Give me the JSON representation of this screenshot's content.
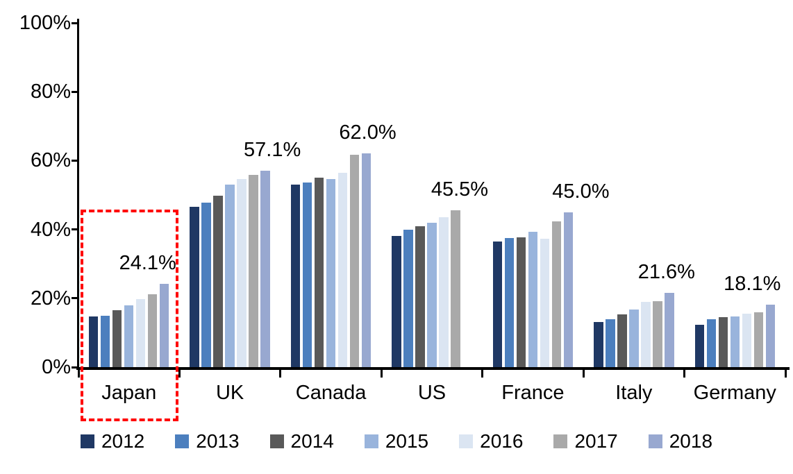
{
  "chart_data": {
    "type": "bar",
    "title": "",
    "categories": [
      "Japan",
      "UK",
      "Canada",
      "US",
      "France",
      "Italy",
      "Germany"
    ],
    "series": [
      {
        "name": "2012",
        "color": "#1F3864",
        "values": [
          14.8,
          46.5,
          53.0,
          38.2,
          36.5,
          13.2,
          12.4
        ]
      },
      {
        "name": "2013",
        "color": "#4C7FBE",
        "values": [
          15.0,
          47.8,
          53.6,
          40.0,
          37.6,
          14.0,
          13.9
        ]
      },
      {
        "name": "2014",
        "color": "#595959",
        "values": [
          16.6,
          49.8,
          55.0,
          41.0,
          37.7,
          15.3,
          14.5
        ]
      },
      {
        "name": "2015",
        "color": "#99B4DC",
        "values": [
          18.0,
          53.1,
          54.7,
          42.0,
          39.3,
          16.8,
          14.7
        ]
      },
      {
        "name": "2016",
        "color": "#DBE5F2",
        "values": [
          19.8,
          54.7,
          56.4,
          43.6,
          37.3,
          18.9,
          15.5
        ]
      },
      {
        "name": "2017",
        "color": "#A9A9A9",
        "values": [
          21.1,
          55.8,
          61.6,
          45.5,
          42.3,
          19.2,
          15.9
        ]
      },
      {
        "name": "2018",
        "color": "#98A8D0",
        "values": [
          24.1,
          57.1,
          62.0,
          null,
          45.0,
          21.6,
          18.1
        ]
      }
    ],
    "y_ticks": [
      "0%",
      "20%",
      "40%",
      "60%",
      "80%",
      "100%"
    ],
    "ylim": [
      0,
      100
    ],
    "grid": false,
    "legend_position": "bottom",
    "data_labels": [
      {
        "category": "Japan",
        "text": "24.1%",
        "dx": -24
      },
      {
        "category": "UK",
        "text": "57.1%",
        "dx": 10
      },
      {
        "category": "Canada",
        "text": "62.0%",
        "dx": 2
      },
      {
        "category": "US",
        "text": "45.5%",
        "dx": 6
      },
      {
        "category": "France",
        "text": "45.0%",
        "dx": 18
      },
      {
        "category": "Italy",
        "text": "21.6%",
        "dx": -4
      },
      {
        "category": "Germany",
        "text": "18.1%",
        "dx": -26
      }
    ],
    "highlight": {
      "target_category": "Japan",
      "color": "#FF0000",
      "style": "dashed-rectangle"
    }
  },
  "colors": {
    "axis": "#000000",
    "background": "#FFFFFF"
  }
}
